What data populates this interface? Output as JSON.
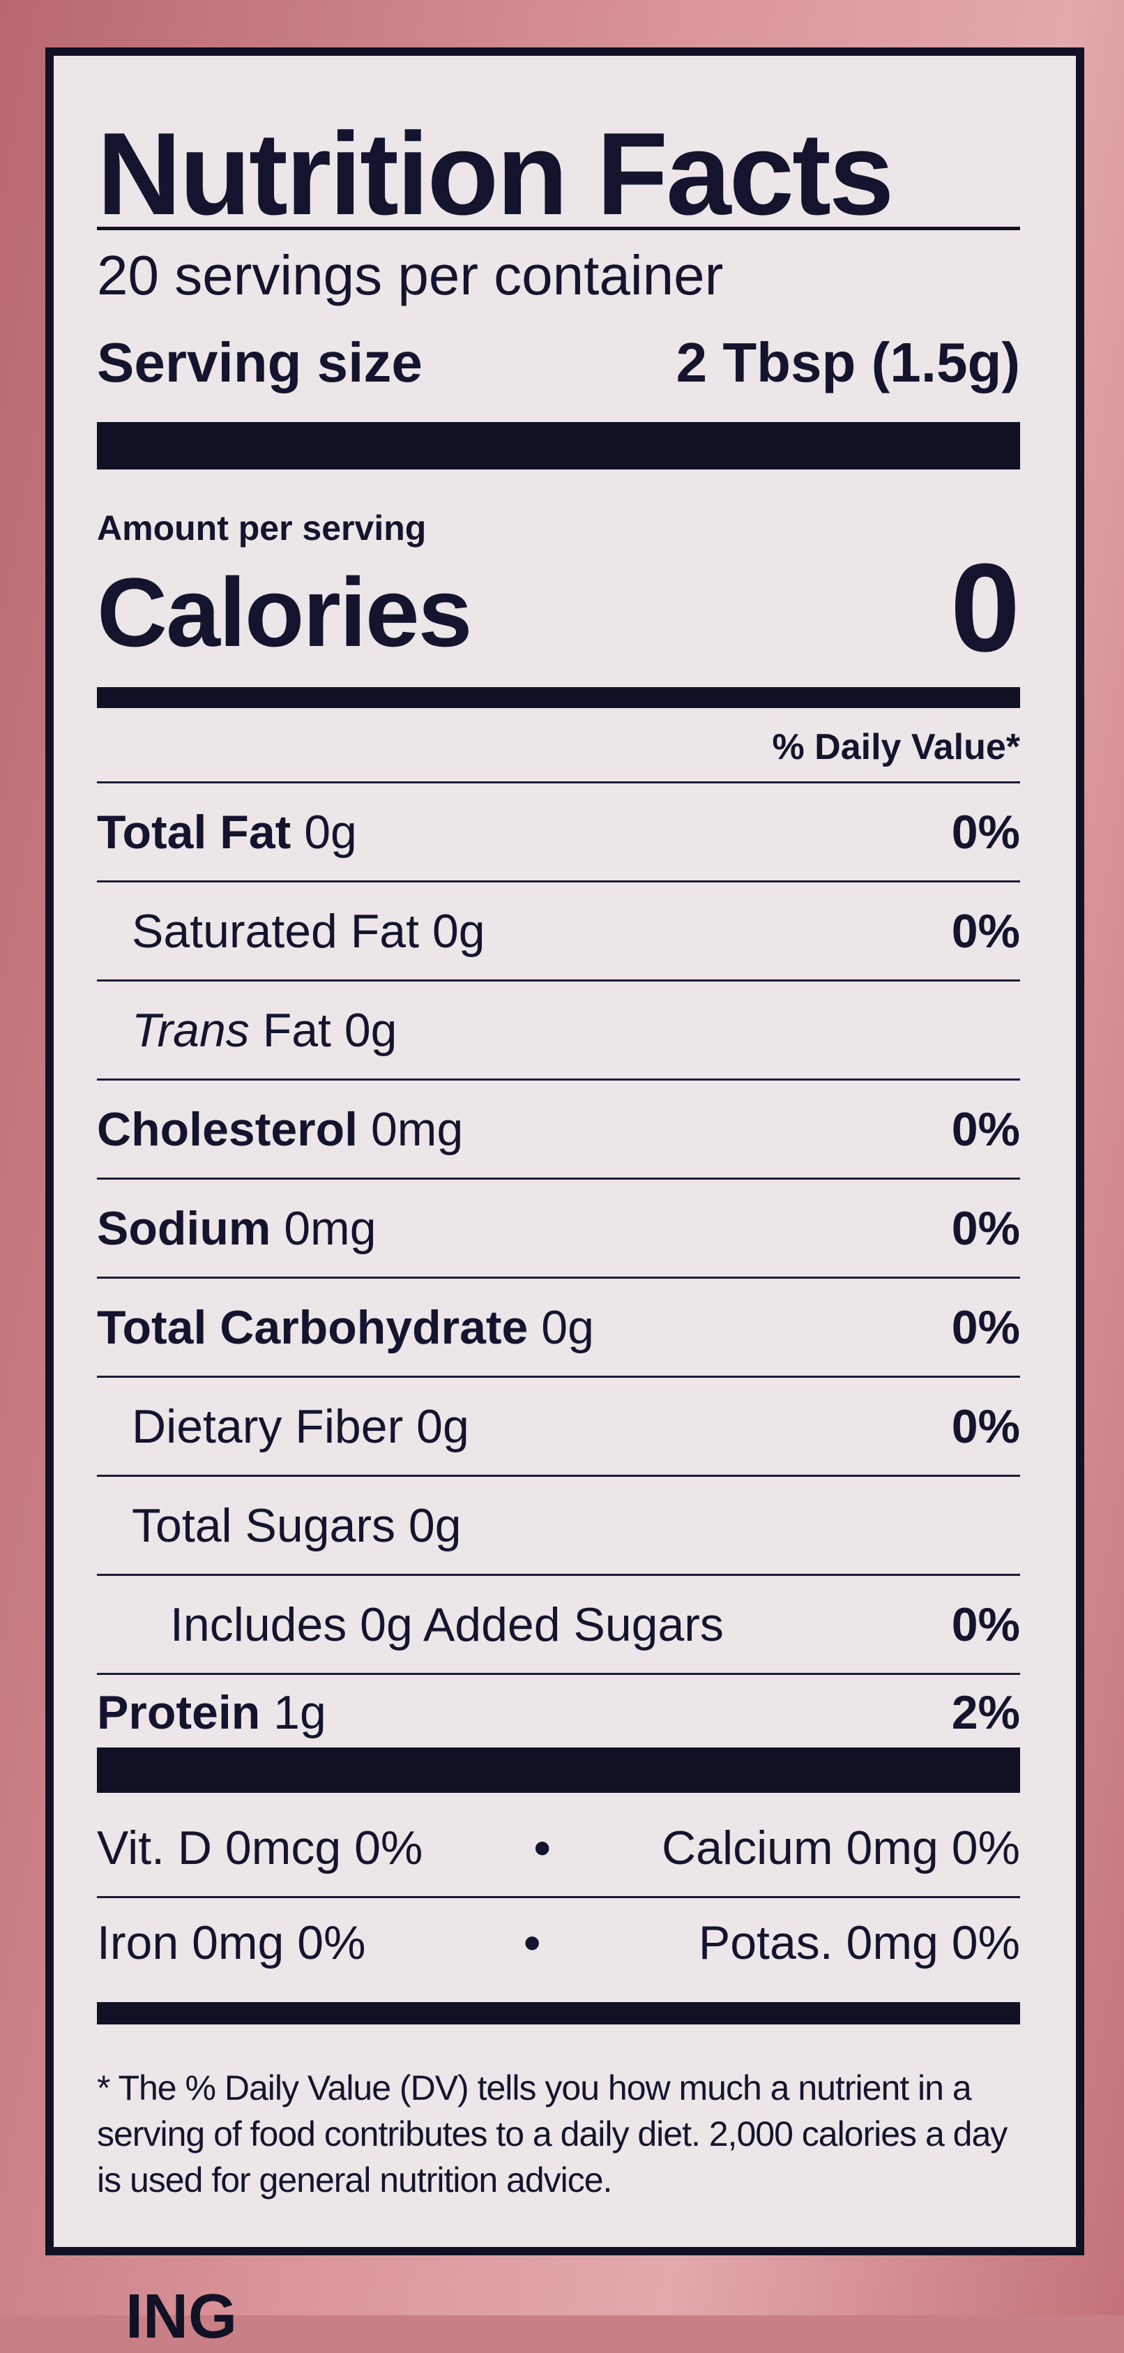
{
  "label": {
    "title": "Nutrition Facts",
    "servings_per_container": "20 servings per container",
    "serving_size_label": "Serving size",
    "serving_size_value": "2 Tbsp (1.5g)",
    "amount_per_serving": "Amount per serving",
    "calories_label": "Calories",
    "calories_value": "0",
    "daily_value_header": "% Daily Value*",
    "nutrients": [
      {
        "name": "Total Fat",
        "amount": "0g",
        "dv": "0%"
      },
      {
        "name": "Saturated Fat",
        "amount": "0g",
        "dv": "0%"
      },
      {
        "name": "Trans",
        "name_suffix": "Fat",
        "amount": "0g",
        "dv": ""
      },
      {
        "name": "Cholesterol",
        "amount": "0mg",
        "dv": "0%"
      },
      {
        "name": "Sodium",
        "amount": "0mg",
        "dv": "0%"
      },
      {
        "name": "Total Carbohydrate",
        "amount": "0g",
        "dv": "0%"
      },
      {
        "name": "Dietary Fiber",
        "amount": "0g",
        "dv": "0%"
      },
      {
        "name": "Total Sugars",
        "amount": "0g",
        "dv": ""
      },
      {
        "name": "Includes 0g Added Sugars",
        "amount": "",
        "dv": "0%"
      },
      {
        "name": "Protein",
        "amount": "1g",
        "dv": "2%"
      }
    ],
    "vitamins": [
      {
        "left": "Vit. D 0mcg 0%",
        "sep": "•",
        "right": "Calcium 0mg 0%"
      },
      {
        "left": "Iron 0mg 0%",
        "sep": "•",
        "right": "Potas. 0mg 0%"
      }
    ],
    "footnote": "* The % Daily Value (DV) tells you how much a nutrient in a serving of food contributes to a daily diet. 2,000 calories a day is used for general nutrition advice.",
    "below_label_partial": "ING"
  },
  "colors": {
    "ink": "#111126",
    "label_bg": "#ece6e8",
    "package": "#c97f86"
  }
}
